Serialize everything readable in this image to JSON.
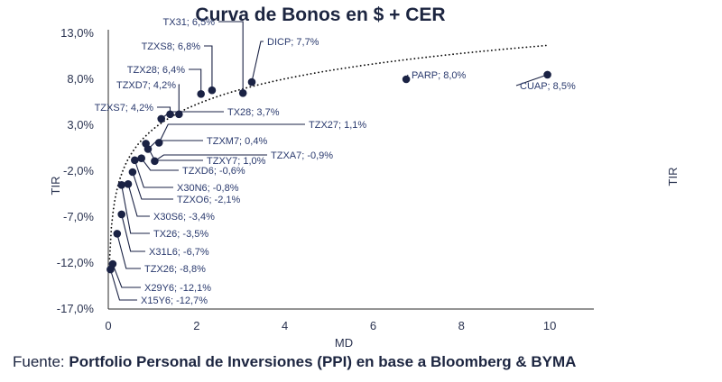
{
  "chart_data": {
    "type": "scatter",
    "title": "Curva de Bonos en $ + CER",
    "xlabel": "MD",
    "ylabel": "TIR",
    "ylabel_right": "TIR",
    "xlim": [
      0,
      11
    ],
    "ylim": [
      -17,
      13
    ],
    "x_ticks": [
      "0",
      "2",
      "4",
      "6",
      "8",
      "10"
    ],
    "x_tick_values": [
      0,
      2,
      4,
      6,
      8,
      10
    ],
    "y_ticks": [
      "13,0%",
      "8,0%",
      "3,0%",
      "-2,0%",
      "-7,0%",
      "-12,0%",
      "-17,0%"
    ],
    "y_tick_values": [
      13,
      8,
      3,
      -2,
      -7,
      -12,
      -17
    ],
    "grid": false,
    "marker_color": "#1a2244",
    "trendline": "dotted, logarithmic",
    "points": [
      {
        "label": "TX31; 6,5%",
        "x": 3.05,
        "y": 6.5
      },
      {
        "label": "TZXS8; 6,8%",
        "x": 2.35,
        "y": 6.8
      },
      {
        "label": "DICP; 7,7%",
        "x": 3.25,
        "y": 7.7
      },
      {
        "label": "TZX28; 6,4%",
        "x": 2.1,
        "y": 6.4
      },
      {
        "label": "TZXD7; 4,2%",
        "x": 1.6,
        "y": 4.2
      },
      {
        "label": "PARP; 8,0%",
        "x": 6.75,
        "y": 8.0
      },
      {
        "label": "CUAP; 8,5%",
        "x": 9.95,
        "y": 8.5
      },
      {
        "label": "TZXS7; 4,2%",
        "x": 1.4,
        "y": 4.2
      },
      {
        "label": "TX28; 3,7%",
        "x": 1.2,
        "y": 3.7
      },
      {
        "label": "TZX27; 1,1%",
        "x": 1.15,
        "y": 1.1
      },
      {
        "label": "TZXM7; 0,4%",
        "x": 0.9,
        "y": 0.4
      },
      {
        "label": "TZXA7; -0,9%",
        "x": 1.05,
        "y": -0.9
      },
      {
        "label": "TZXY7; 1,0%",
        "x": 0.85,
        "y": 1.0
      },
      {
        "label": "TZXD6; -0,6%",
        "x": 0.75,
        "y": -0.6
      },
      {
        "label": "X30N6; -0,8%",
        "x": 0.6,
        "y": -0.8
      },
      {
        "label": "TZXO6; -2,1%",
        "x": 0.55,
        "y": -2.1
      },
      {
        "label": "X30S6; -3,4%",
        "x": 0.45,
        "y": -3.4
      },
      {
        "label": "TX26; -3,5%",
        "x": 0.3,
        "y": -3.5
      },
      {
        "label": "X31L6; -6,7%",
        "x": 0.3,
        "y": -6.7
      },
      {
        "label": "TZX26; -8,8%",
        "x": 0.2,
        "y": -8.8
      },
      {
        "label": "X29Y6; -12,1%",
        "x": 0.1,
        "y": -12.1
      },
      {
        "label": "X15Y6; -12,7%",
        "x": 0.05,
        "y": -12.7
      }
    ]
  },
  "footer": {
    "prefix": "Fuente: ",
    "source": "Portfolio Personal de Inversiones (PPI) en base a Bloomberg & BYMA"
  }
}
